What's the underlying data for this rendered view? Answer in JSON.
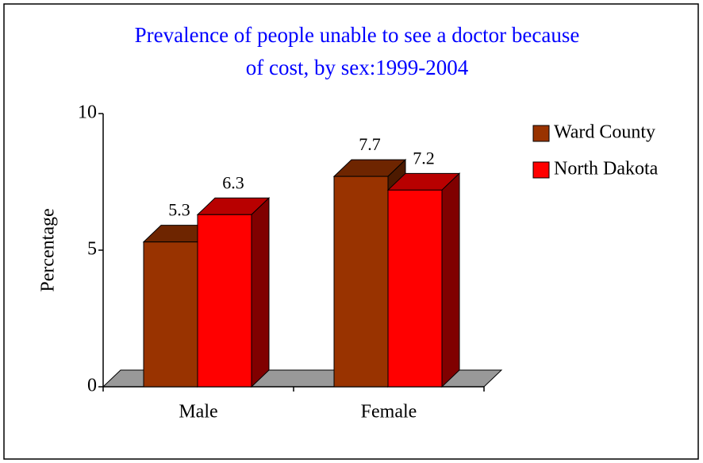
{
  "chart_data": {
    "type": "bar3d",
    "title": [
      "Prevalence of people unable to see a doctor because",
      "of cost, by sex:1999-2004"
    ],
    "y_label": "Percentage",
    "categories": [
      "Male",
      "Female"
    ],
    "series": [
      {
        "name": "Ward County",
        "color": "#993300",
        "values": [
          5.3,
          7.7
        ]
      },
      {
        "name": "North Dakota",
        "color": "#ff0000",
        "values": [
          6.3,
          7.2
        ]
      }
    ],
    "ylim": [
      0,
      10
    ],
    "yticks": [
      0,
      5,
      10
    ],
    "legend": "right"
  }
}
